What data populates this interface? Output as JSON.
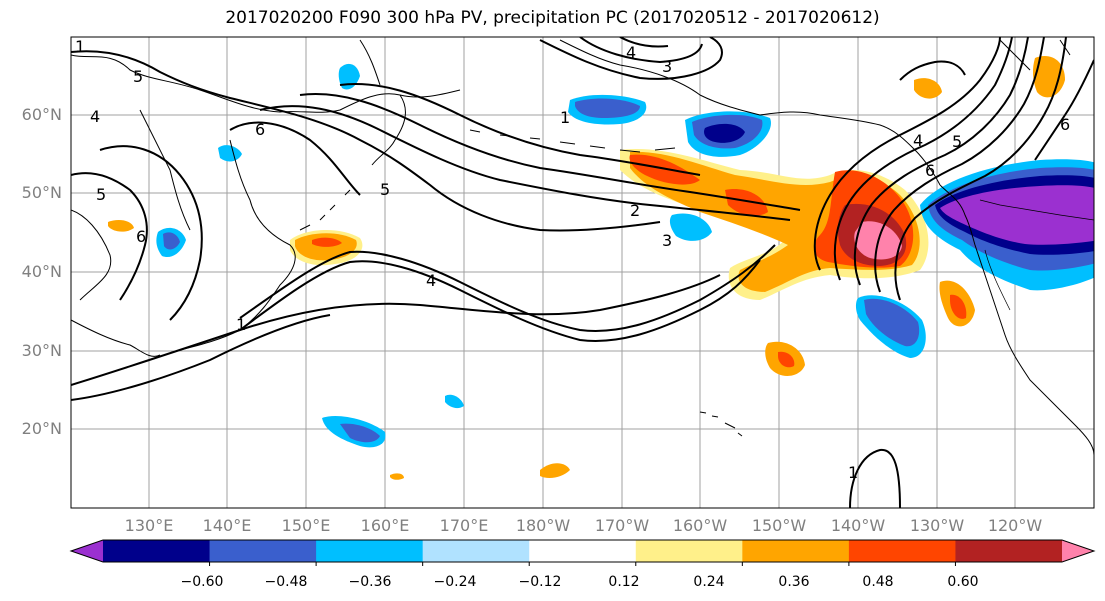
{
  "title": "2017020200 F090 300 hPa PV, precipitation PC (2017020512 - 2017020612)",
  "map": {
    "lat_labels": [
      "60°N",
      "50°N",
      "40°N",
      "30°N",
      "20°N"
    ],
    "lon_labels": [
      "130°E",
      "140°E",
      "150°E",
      "160°E",
      "170°E",
      "180°W",
      "170°W",
      "160°W",
      "150°W",
      "140°W",
      "130°W",
      "120°W"
    ],
    "contour_labels": [
      "1",
      "2",
      "3",
      "4",
      "5",
      "6"
    ],
    "colors": {
      "axis_label": "#808080",
      "grid": "#a0a0a0",
      "contour": "#000000",
      "coast": "#000000"
    }
  },
  "colorbar": {
    "tick_labels": [
      "−0.60",
      "−0.48",
      "−0.36",
      "−0.24",
      "−0.12",
      "0.12",
      "0.24",
      "0.36",
      "0.48",
      "0.60"
    ],
    "colors": [
      "#9b30d0",
      "#00008b",
      "#3a5fcd",
      "#00bfff",
      "#b0e2ff",
      "#ffffff",
      "#fff08a",
      "#ffa500",
      "#ff4500",
      "#b22222",
      "#ff82ab"
    ],
    "extend": "both"
  }
}
